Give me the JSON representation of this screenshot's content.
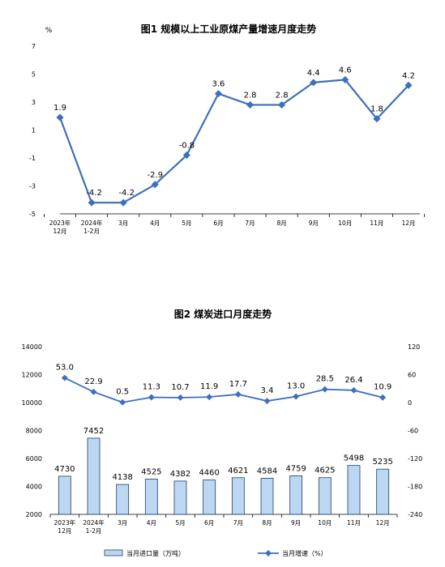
{
  "colors": {
    "line": "#3d6fbf",
    "bar_fill": "#bcd7f1",
    "bar_stroke": "#1f3f66",
    "axis": "#000000",
    "text": "#000000"
  },
  "chart_data": [
    {
      "type": "line",
      "title": "图1  规模以上工业原煤产量增速月度走势",
      "ylabel": "%",
      "categories": [
        [
          "2023年",
          "12月"
        ],
        [
          "2024年",
          "1-2月"
        ],
        [
          "3月"
        ],
        [
          "4月"
        ],
        [
          "5月"
        ],
        [
          "6月"
        ],
        [
          "7月"
        ],
        [
          "8月"
        ],
        [
          "9月"
        ],
        [
          "10月"
        ],
        [
          "11月"
        ],
        [
          "12月"
        ]
      ],
      "values": [
        1.9,
        -4.2,
        -4.2,
        -2.9,
        -0.8,
        3.6,
        2.8,
        2.8,
        4.4,
        4.6,
        1.8,
        4.2
      ],
      "data_labels": [
        "1.9",
        "-4.2",
        "-4.2",
        "-2.9",
        "-0.8",
        "3.6",
        "2.8",
        "2.8",
        "4.4",
        "4.6",
        "1.8",
        "4.2"
      ],
      "ylim": [
        -5,
        7
      ],
      "yticks": [
        "7",
        "5",
        "3",
        "1",
        "-1",
        "-3",
        "-5"
      ],
      "grid": false
    },
    {
      "type": "bar+line",
      "title": "图2  煤炭进口月度走势",
      "categories": [
        [
          "2023年",
          "12月"
        ],
        [
          "2024年",
          "1-2月"
        ],
        [
          "3月"
        ],
        [
          "4月"
        ],
        [
          "5月"
        ],
        [
          "6月"
        ],
        [
          "7月"
        ],
        [
          "8月"
        ],
        [
          "9月"
        ],
        [
          "10月"
        ],
        [
          "11月"
        ],
        [
          "12月"
        ]
      ],
      "series": [
        {
          "name": "当月进口量（万吨）",
          "kind": "bar",
          "axis": "left",
          "values": [
            4730,
            7452,
            4138,
            4525,
            4382,
            4460,
            4621,
            4584,
            4759,
            4625,
            5498,
            5235
          ],
          "data_labels": [
            "4730",
            "7452",
            "4138",
            "4525",
            "4382",
            "4460",
            "4621",
            "4584",
            "4759",
            "4625",
            "5498",
            "5235"
          ]
        },
        {
          "name": "当月增速（%）",
          "kind": "line",
          "axis": "right",
          "values": [
            53.0,
            22.9,
            0.5,
            11.3,
            10.7,
            11.9,
            17.7,
            3.4,
            13.0,
            28.5,
            26.4,
            10.9
          ],
          "data_labels": [
            "53.0",
            "22.9",
            "0.5",
            "11.3",
            "10.7",
            "11.9",
            "17.7",
            "3.4",
            "13.0",
            "28.5",
            "26.4",
            "10.9"
          ]
        }
      ],
      "ylim_left": [
        2000,
        14000
      ],
      "yticks_left": [
        "14000",
        "12000",
        "10000",
        "8000",
        "6000",
        "4000",
        "2000"
      ],
      "ylim_right": [
        -240,
        120
      ],
      "yticks_right": [
        "120",
        "60",
        "0",
        "-60",
        "-120",
        "-180",
        "-240"
      ],
      "legend": "bottom",
      "grid": false
    }
  ]
}
